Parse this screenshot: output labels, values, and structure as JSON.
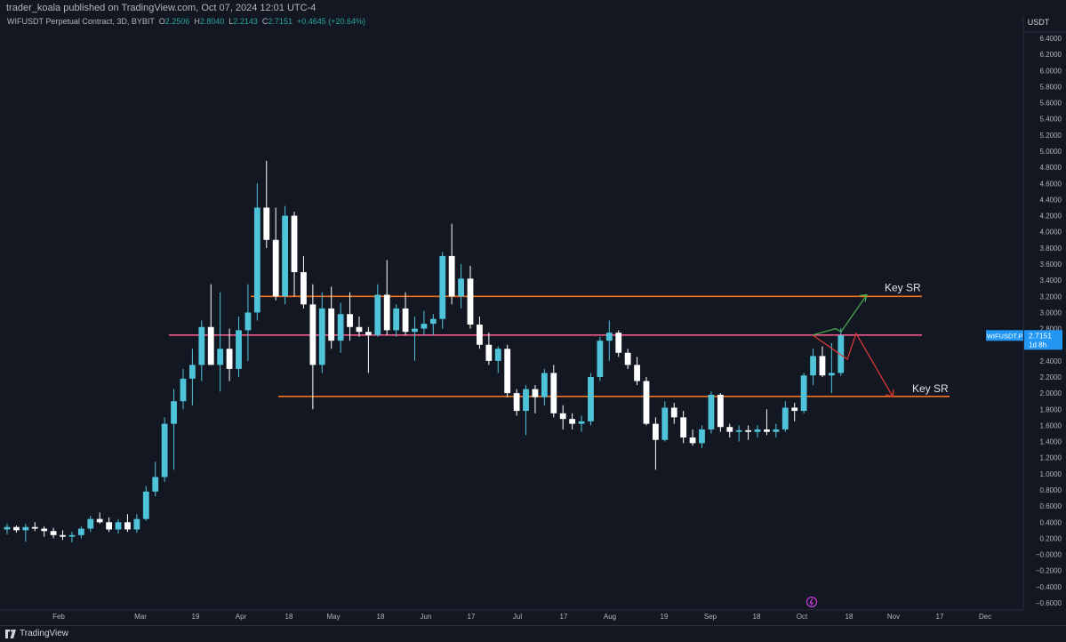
{
  "header": {
    "published": "trader_koala published on TradingView.com, Oct 07, 2024 12:01 UTC-4"
  },
  "legend": {
    "symbol": "WIFUSDT Perpetual Contract, 3D, BYBIT",
    "o_label": "O",
    "o_value": "2.2506",
    "h_label": "H",
    "h_value": "2.8040",
    "l_label": "L",
    "l_value": "2.2143",
    "c_label": "C",
    "c_value": "2.7151",
    "change": "+0.4645 (+20.64%)"
  },
  "price_axis": {
    "currency": "USDT",
    "ticks": [
      "6.4000",
      "6.2000",
      "6.0000",
      "5.8000",
      "5.6000",
      "5.4000",
      "5.2000",
      "5.0000",
      "4.8000",
      "4.6000",
      "4.4000",
      "4.2000",
      "4.0000",
      "3.8000",
      "3.6000",
      "3.4000",
      "3.2000",
      "3.0000",
      "2.8000",
      "2.6000",
      "2.4000",
      "2.2000",
      "2.0000",
      "1.8000",
      "1.6000",
      "1.4000",
      "1.2000",
      "1.0000",
      "0.8000",
      "0.6000",
      "0.4000",
      "0.2000",
      "−0.0000",
      "−0.2000",
      "−0.4000",
      "−0.6000"
    ],
    "last_symbol": "WIFUSDT.P",
    "last_price": "2.7151",
    "countdown": "1d 8h"
  },
  "time_axis": {
    "ticks": [
      "Feb",
      "Mar",
      "19",
      "Apr",
      "18",
      "May",
      "18",
      "Jun",
      "17",
      "Jul",
      "17",
      "Aug",
      "19",
      "Sep",
      "18",
      "Oct",
      "18",
      "Nov",
      "17",
      "Dec"
    ]
  },
  "annotations": {
    "upper_label": "Key SR",
    "lower_label": "Key SR"
  },
  "footer": {
    "brand": "TradingView"
  },
  "colors": {
    "up": "#4fc3d9",
    "down": "#ffffff",
    "orange_line": "#f2711c",
    "pink_line": "#f05a8c",
    "green_arrow": "#4caf50",
    "red_arrow": "#e53935",
    "badge": "#2196f3"
  },
  "chart_data": {
    "type": "candlestick",
    "interval": "3D",
    "ylim": [
      -0.6,
      6.5
    ],
    "levels": [
      {
        "label": "Key SR",
        "price": 3.2
      },
      {
        "price": 2.72
      },
      {
        "label": "Key SR",
        "price": 1.96
      }
    ],
    "candles": [
      {
        "o": 0.31,
        "h": 0.38,
        "l": 0.25,
        "c": 0.34
      },
      {
        "o": 0.34,
        "h": 0.36,
        "l": 0.27,
        "c": 0.3
      },
      {
        "o": 0.3,
        "h": 0.38,
        "l": 0.16,
        "c": 0.34
      },
      {
        "o": 0.34,
        "h": 0.4,
        "l": 0.29,
        "c": 0.32
      },
      {
        "o": 0.32,
        "h": 0.35,
        "l": 0.22,
        "c": 0.29
      },
      {
        "o": 0.29,
        "h": 0.33,
        "l": 0.2,
        "c": 0.24
      },
      {
        "o": 0.24,
        "h": 0.3,
        "l": 0.18,
        "c": 0.22
      },
      {
        "o": 0.22,
        "h": 0.28,
        "l": 0.15,
        "c": 0.24
      },
      {
        "o": 0.24,
        "h": 0.35,
        "l": 0.2,
        "c": 0.32
      },
      {
        "o": 0.32,
        "h": 0.48,
        "l": 0.28,
        "c": 0.44
      },
      {
        "o": 0.44,
        "h": 0.52,
        "l": 0.38,
        "c": 0.4
      },
      {
        "o": 0.4,
        "h": 0.46,
        "l": 0.28,
        "c": 0.31
      },
      {
        "o": 0.31,
        "h": 0.44,
        "l": 0.26,
        "c": 0.4
      },
      {
        "o": 0.4,
        "h": 0.5,
        "l": 0.28,
        "c": 0.31
      },
      {
        "o": 0.31,
        "h": 0.5,
        "l": 0.27,
        "c": 0.44
      },
      {
        "o": 0.44,
        "h": 0.85,
        "l": 0.42,
        "c": 0.78
      },
      {
        "o": 0.78,
        "h": 1.15,
        "l": 0.72,
        "c": 0.96
      },
      {
        "o": 0.96,
        "h": 1.7,
        "l": 0.9,
        "c": 1.62
      },
      {
        "o": 1.62,
        "h": 2.05,
        "l": 1.05,
        "c": 1.9
      },
      {
        "o": 1.9,
        "h": 2.3,
        "l": 1.8,
        "c": 2.18
      },
      {
        "o": 2.18,
        "h": 2.55,
        "l": 1.85,
        "c": 2.35
      },
      {
        "o": 2.35,
        "h": 2.9,
        "l": 2.15,
        "c": 2.82
      },
      {
        "o": 2.82,
        "h": 3.35,
        "l": 2.4,
        "c": 2.35
      },
      {
        "o": 2.35,
        "h": 3.25,
        "l": 2.02,
        "c": 2.55
      },
      {
        "o": 2.55,
        "h": 2.8,
        "l": 2.15,
        "c": 2.3
      },
      {
        "o": 2.3,
        "h": 2.95,
        "l": 2.2,
        "c": 2.78
      },
      {
        "o": 2.78,
        "h": 3.35,
        "l": 2.4,
        "c": 3.0
      },
      {
        "o": 3.0,
        "h": 4.6,
        "l": 2.9,
        "c": 4.3
      },
      {
        "o": 4.3,
        "h": 4.88,
        "l": 3.8,
        "c": 3.9
      },
      {
        "o": 3.9,
        "h": 4.3,
        "l": 3.15,
        "c": 3.2
      },
      {
        "o": 3.2,
        "h": 4.32,
        "l": 3.1,
        "c": 4.2
      },
      {
        "o": 4.2,
        "h": 4.25,
        "l": 3.2,
        "c": 3.5
      },
      {
        "o": 3.5,
        "h": 3.7,
        "l": 3.05,
        "c": 3.1
      },
      {
        "o": 3.1,
        "h": 3.35,
        "l": 1.8,
        "c": 2.35
      },
      {
        "o": 2.35,
        "h": 3.25,
        "l": 2.25,
        "c": 3.05
      },
      {
        "o": 3.05,
        "h": 3.32,
        "l": 2.55,
        "c": 2.65
      },
      {
        "o": 2.65,
        "h": 3.12,
        "l": 2.5,
        "c": 2.98
      },
      {
        "o": 2.98,
        "h": 3.25,
        "l": 2.65,
        "c": 2.82
      },
      {
        "o": 2.82,
        "h": 2.95,
        "l": 2.7,
        "c": 2.76
      },
      {
        "o": 2.76,
        "h": 2.82,
        "l": 2.25,
        "c": 2.72
      },
      {
        "o": 2.72,
        "h": 3.35,
        "l": 2.7,
        "c": 3.22
      },
      {
        "o": 3.22,
        "h": 3.65,
        "l": 2.72,
        "c": 2.78
      },
      {
        "o": 2.78,
        "h": 3.1,
        "l": 2.7,
        "c": 3.05
      },
      {
        "o": 3.05,
        "h": 3.25,
        "l": 2.72,
        "c": 2.76
      },
      {
        "o": 2.76,
        "h": 2.95,
        "l": 2.4,
        "c": 2.8
      },
      {
        "o": 2.8,
        "h": 3.02,
        "l": 2.72,
        "c": 2.86
      },
      {
        "o": 2.86,
        "h": 2.98,
        "l": 2.72,
        "c": 2.92
      },
      {
        "o": 2.92,
        "h": 3.75,
        "l": 2.8,
        "c": 3.7
      },
      {
        "o": 3.7,
        "h": 4.1,
        "l": 3.1,
        "c": 3.2
      },
      {
        "o": 3.2,
        "h": 3.6,
        "l": 3.05,
        "c": 3.42
      },
      {
        "o": 3.42,
        "h": 3.58,
        "l": 2.8,
        "c": 2.85
      },
      {
        "o": 2.85,
        "h": 2.95,
        "l": 2.55,
        "c": 2.6
      },
      {
        "o": 2.6,
        "h": 2.75,
        "l": 2.35,
        "c": 2.4
      },
      {
        "o": 2.4,
        "h": 2.58,
        "l": 2.25,
        "c": 2.55
      },
      {
        "o": 2.55,
        "h": 2.6,
        "l": 1.95,
        "c": 2.0
      },
      {
        "o": 2.0,
        "h": 2.05,
        "l": 1.72,
        "c": 1.78
      },
      {
        "o": 1.78,
        "h": 2.1,
        "l": 1.48,
        "c": 2.05
      },
      {
        "o": 2.05,
        "h": 2.1,
        "l": 1.75,
        "c": 1.95
      },
      {
        "o": 1.95,
        "h": 2.3,
        "l": 1.85,
        "c": 2.25
      },
      {
        "o": 2.25,
        "h": 2.35,
        "l": 1.7,
        "c": 1.75
      },
      {
        "o": 1.75,
        "h": 1.85,
        "l": 1.55,
        "c": 1.68
      },
      {
        "o": 1.68,
        "h": 1.75,
        "l": 1.55,
        "c": 1.62
      },
      {
        "o": 1.62,
        "h": 1.72,
        "l": 1.52,
        "c": 1.65
      },
      {
        "o": 1.65,
        "h": 2.25,
        "l": 1.6,
        "c": 2.2
      },
      {
        "o": 2.2,
        "h": 2.7,
        "l": 2.15,
        "c": 2.65
      },
      {
        "o": 2.65,
        "h": 2.9,
        "l": 2.4,
        "c": 2.75
      },
      {
        "o": 2.75,
        "h": 2.78,
        "l": 2.45,
        "c": 2.5
      },
      {
        "o": 2.5,
        "h": 2.55,
        "l": 2.3,
        "c": 2.35
      },
      {
        "o": 2.35,
        "h": 2.45,
        "l": 2.1,
        "c": 2.15
      },
      {
        "o": 2.15,
        "h": 2.2,
        "l": 1.6,
        "c": 1.62
      },
      {
        "o": 1.62,
        "h": 1.7,
        "l": 1.05,
        "c": 1.42
      },
      {
        "o": 1.42,
        "h": 1.9,
        "l": 1.4,
        "c": 1.82
      },
      {
        "o": 1.82,
        "h": 1.88,
        "l": 1.62,
        "c": 1.7
      },
      {
        "o": 1.7,
        "h": 1.78,
        "l": 1.38,
        "c": 1.45
      },
      {
        "o": 1.45,
        "h": 1.55,
        "l": 1.35,
        "c": 1.38
      },
      {
        "o": 1.38,
        "h": 1.6,
        "l": 1.32,
        "c": 1.55
      },
      {
        "o": 1.55,
        "h": 2.02,
        "l": 1.5,
        "c": 1.98
      },
      {
        "o": 1.98,
        "h": 2.0,
        "l": 1.52,
        "c": 1.58
      },
      {
        "o": 1.58,
        "h": 1.62,
        "l": 1.45,
        "c": 1.52
      },
      {
        "o": 1.52,
        "h": 1.6,
        "l": 1.4,
        "c": 1.54
      },
      {
        "o": 1.54,
        "h": 1.6,
        "l": 1.42,
        "c": 1.52
      },
      {
        "o": 1.52,
        "h": 1.6,
        "l": 1.45,
        "c": 1.55
      },
      {
        "o": 1.55,
        "h": 1.8,
        "l": 1.48,
        "c": 1.52
      },
      {
        "o": 1.52,
        "h": 1.62,
        "l": 1.45,
        "c": 1.55
      },
      {
        "o": 1.55,
        "h": 1.9,
        "l": 1.52,
        "c": 1.82
      },
      {
        "o": 1.82,
        "h": 1.88,
        "l": 1.65,
        "c": 1.78
      },
      {
        "o": 1.78,
        "h": 2.25,
        "l": 1.75,
        "c": 2.22
      },
      {
        "o": 2.22,
        "h": 2.55,
        "l": 2.1,
        "c": 2.46
      },
      {
        "o": 2.46,
        "h": 2.58,
        "l": 2.2,
        "c": 2.22
      },
      {
        "o": 2.22,
        "h": 2.62,
        "l": 2.0,
        "c": 2.25
      },
      {
        "o": 2.2506,
        "h": 2.804,
        "l": 2.2143,
        "c": 2.7151
      }
    ]
  }
}
